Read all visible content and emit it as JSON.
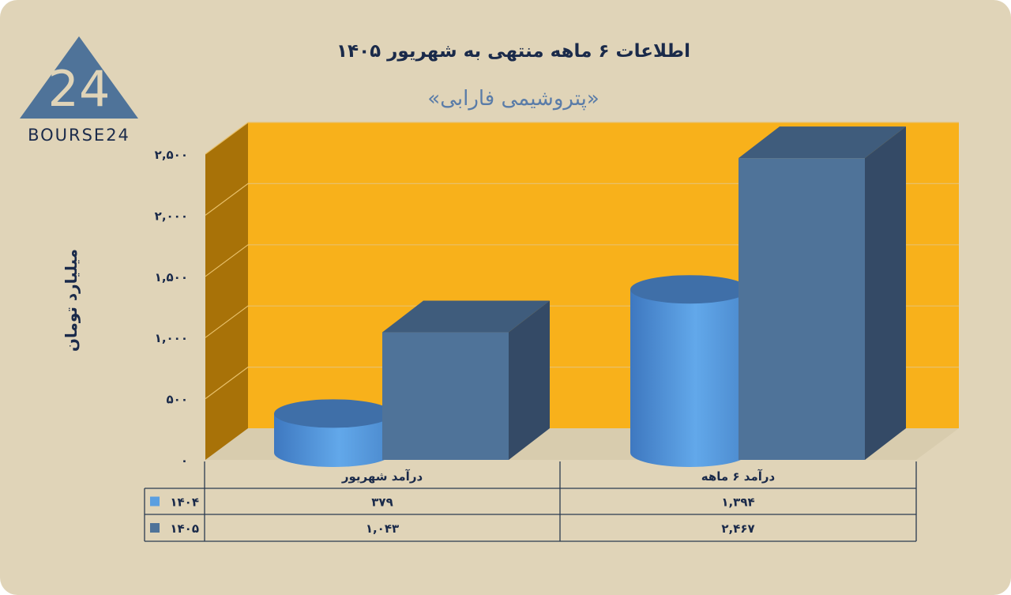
{
  "title": "اطلاعات ۶ ماهه منتهی به شهریور ۱۴۰۵",
  "subtitle": "«پتروشیمی فارابی»",
  "logo_text": "BOURSE24",
  "logo_number": "24",
  "colors": {
    "background": "#e0d4b8",
    "wall": "#f8b11b",
    "series_1404": "#5b9fe0",
    "series_1405": "#4f7399",
    "text": "#1a2a4a"
  },
  "chart_data": {
    "type": "bar",
    "ylabel": "میلیارد تومان",
    "ylim": [
      0,
      2500
    ],
    "yticks": [
      0,
      500,
      1000,
      1500,
      2000,
      2500
    ],
    "ytick_labels": [
      "۰",
      "۵۰۰",
      "۱,۰۰۰",
      "۱,۵۰۰",
      "۲,۰۰۰",
      "۲,۵۰۰"
    ],
    "categories": [
      "درآمد  شهریور",
      "درآمد ۶  ماهه"
    ],
    "series": [
      {
        "name": "۱۴۰۴",
        "shape": "cylinder",
        "values": [
          379,
          1394
        ],
        "labels": [
          "۳۷۹",
          "۱,۳۹۴"
        ]
      },
      {
        "name": "۱۴۰۵",
        "shape": "box",
        "values": [
          1043,
          2467
        ],
        "labels": [
          "۱,۰۴۳",
          "۲,۴۶۷"
        ]
      }
    ],
    "legend": "data-table",
    "grid": true
  }
}
